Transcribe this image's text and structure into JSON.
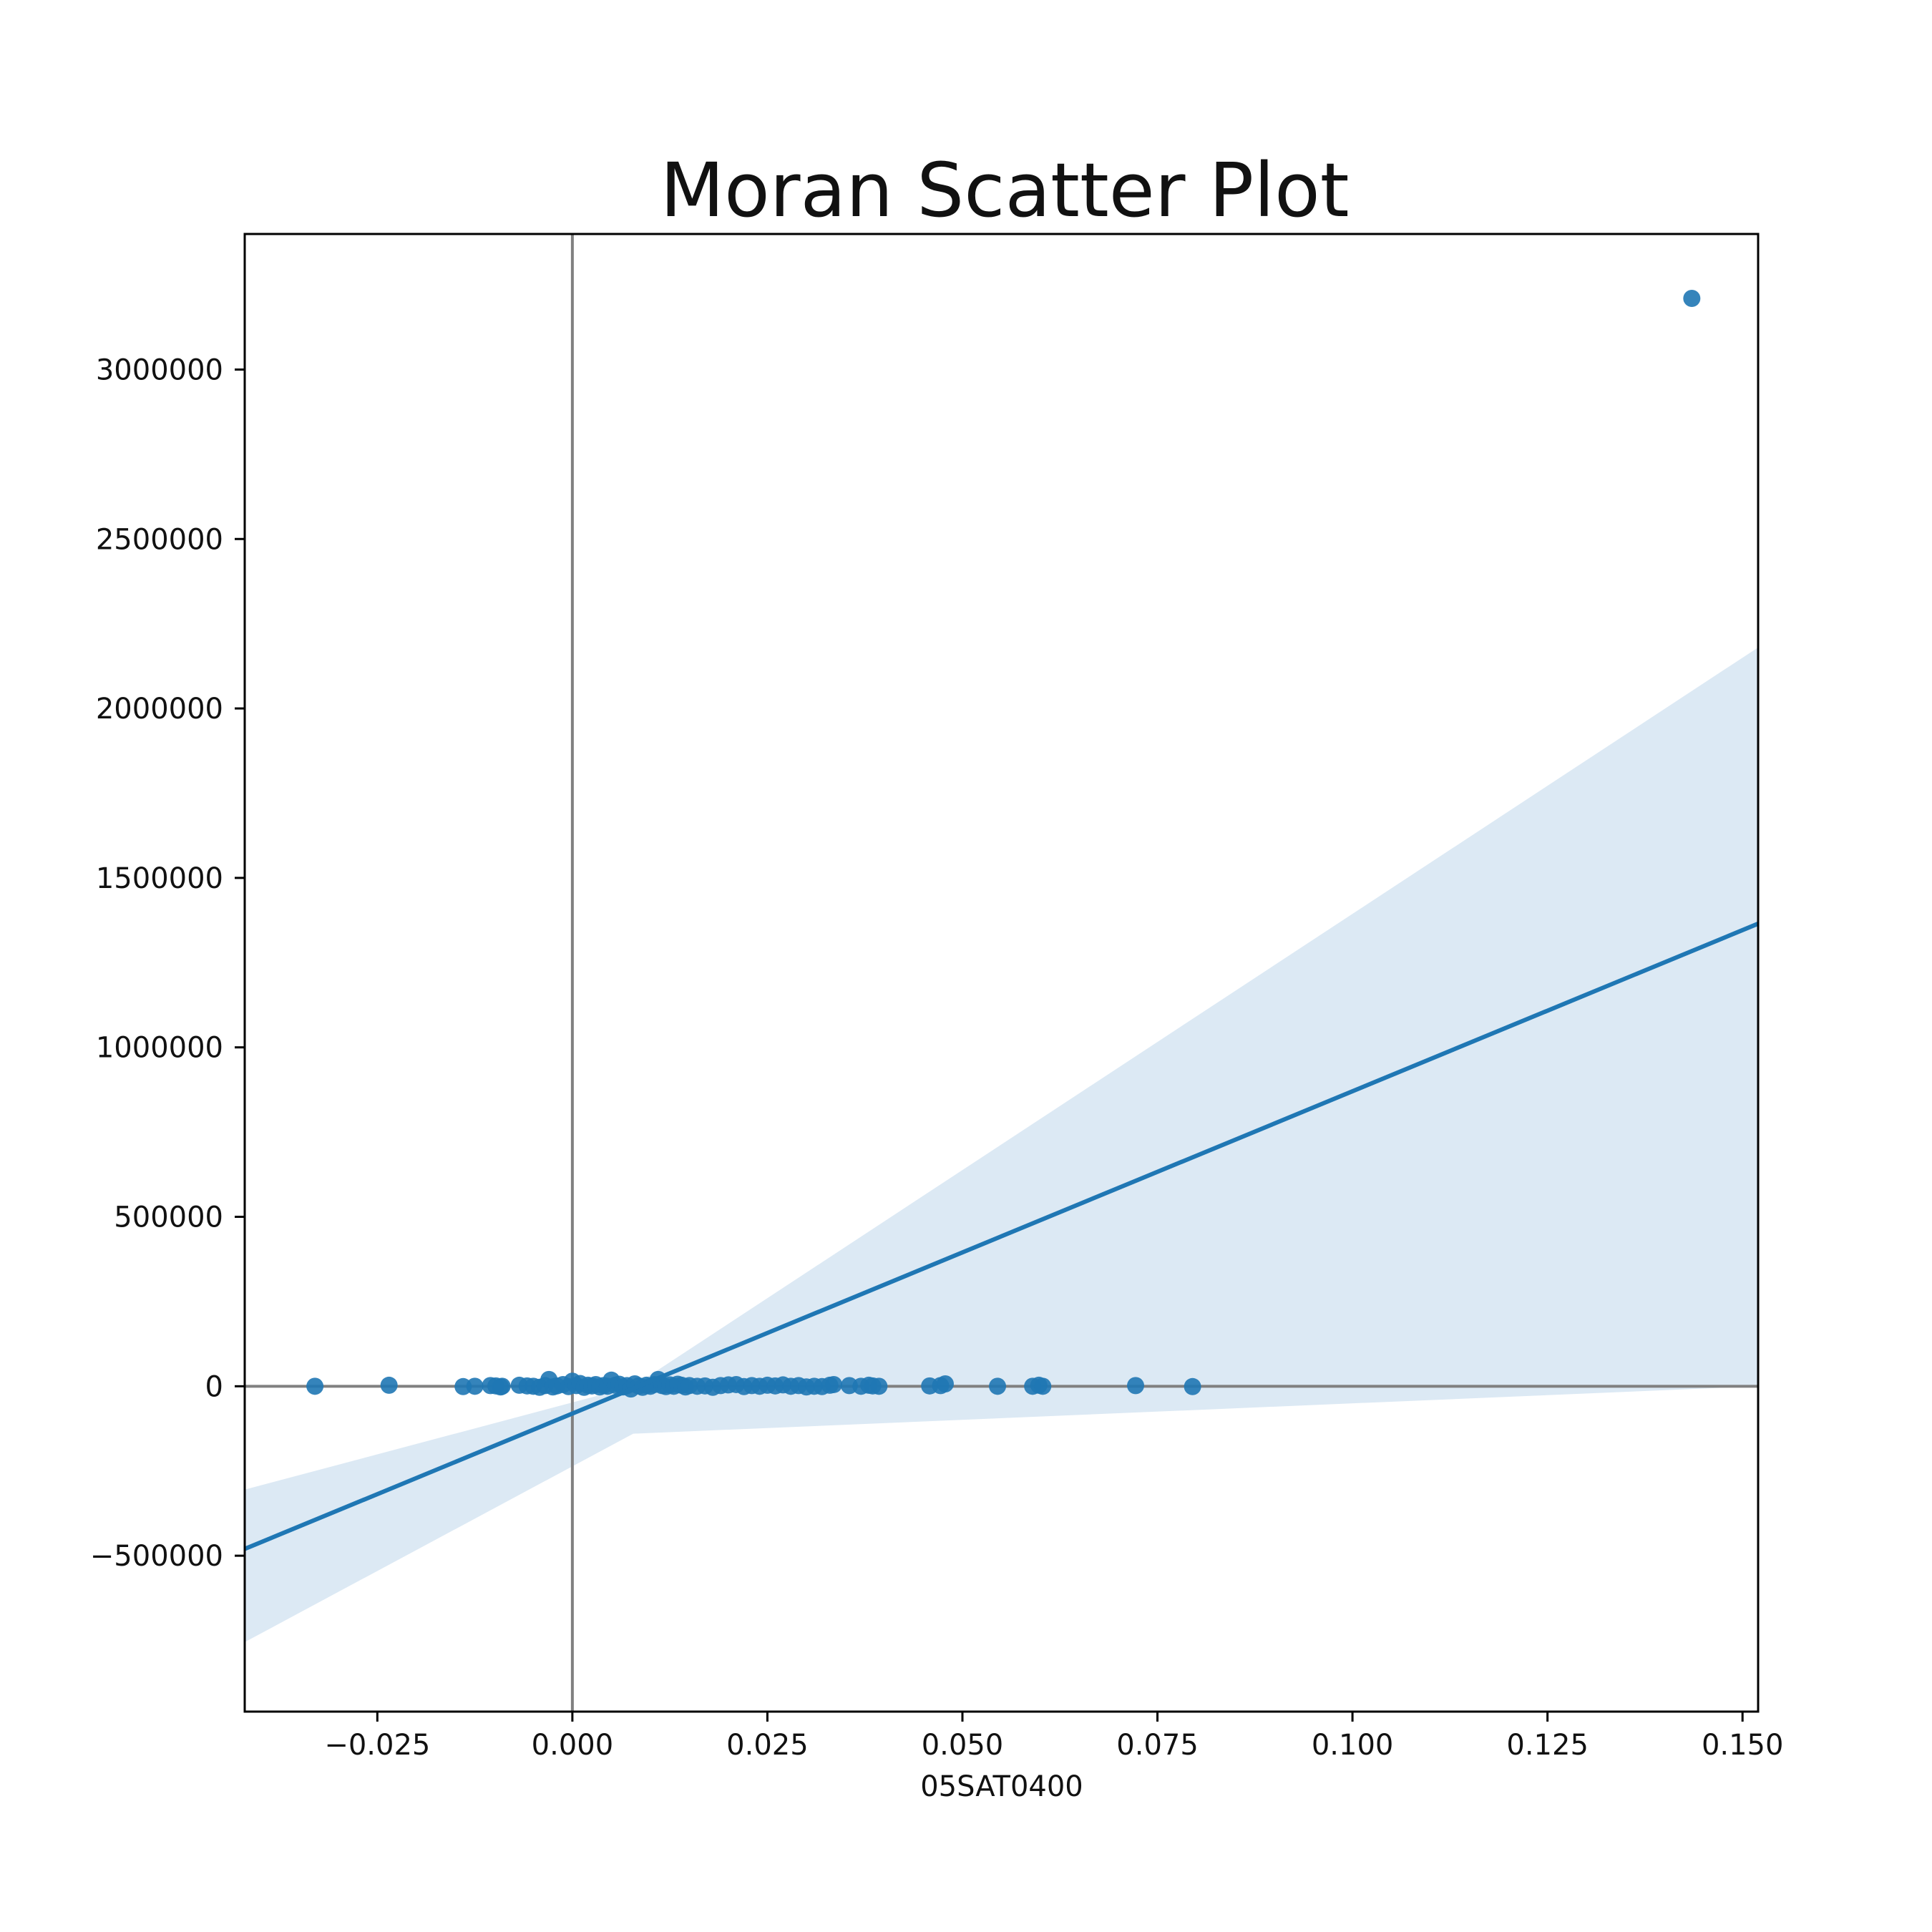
{
  "chart_data": {
    "type": "scatter",
    "title": "Moran Scatter Plot",
    "xlabel": "05SAT0400",
    "ylabel": "",
    "xlim": [
      -0.042,
      0.152
    ],
    "ylim": [
      -960000,
      3400000
    ],
    "x_ticks": [
      -0.025,
      0.0,
      0.025,
      0.05,
      0.075,
      0.1,
      0.125,
      0.15
    ],
    "x_tick_labels": [
      "−0.025",
      "0.000",
      "0.025",
      "0.050",
      "0.075",
      "0.100",
      "0.125",
      "0.150"
    ],
    "y_ticks": [
      -500000,
      0,
      500000,
      1000000,
      1500000,
      2000000,
      2500000,
      3000000
    ],
    "y_tick_labels": [
      "−500000",
      "0",
      "500000",
      "1000000",
      "1500000",
      "2000000",
      "2500000",
      "3000000"
    ],
    "reference_lines": {
      "x": 0,
      "y": 0
    },
    "regression_line": {
      "x": [
        -0.042,
        0.152
      ],
      "y": [
        -480000,
        1365000
      ]
    },
    "confidence_band": {
      "x": [
        -0.042,
        0.0078,
        0.152
      ],
      "upper": [
        -305000,
        0,
        2180000
      ],
      "lower": [
        -755000,
        -140000,
        0
      ]
    },
    "grid": false,
    "legend": "none",
    "colors": {
      "points": "#1f77b4",
      "band": "#dce9f4",
      "reference": "#808080"
    },
    "series": [
      {
        "name": "05SAT0400",
        "x": [
          -0.033,
          -0.0235,
          -0.014,
          -0.0125,
          -0.0105,
          -0.0098,
          -0.0092,
          -0.009,
          -0.0068,
          -0.0058,
          -0.005,
          -0.0042,
          -0.0035,
          -0.003,
          -0.0025,
          -0.002,
          -0.0012,
          -0.0005,
          0.0,
          0.0005,
          0.001,
          0.0015,
          0.002,
          0.0025,
          0.003,
          0.0035,
          0.004,
          0.0045,
          0.005,
          0.0055,
          0.006,
          0.0065,
          0.007,
          0.0075,
          0.008,
          0.0085,
          0.009,
          0.0095,
          0.01,
          0.0105,
          0.011,
          0.0115,
          0.012,
          0.0125,
          0.013,
          0.0135,
          0.014,
          0.0145,
          0.015,
          0.016,
          0.017,
          0.018,
          0.019,
          0.02,
          0.021,
          0.022,
          0.023,
          0.024,
          0.025,
          0.026,
          0.027,
          0.028,
          0.029,
          0.03,
          0.031,
          0.032,
          0.033,
          0.0335,
          0.0355,
          0.037,
          0.038,
          0.0385,
          0.0393,
          0.0458,
          0.0472,
          0.0478,
          0.0545,
          0.059,
          0.0598,
          0.0603,
          0.0722,
          0.0795,
          0.1435
        ],
        "y": [
          0,
          3000,
          -1000,
          0,
          2000,
          1000,
          -2000,
          0,
          3000,
          1000,
          0,
          -3000,
          2000,
          20000,
          -2000,
          1000,
          5000,
          -1000,
          15000,
          2000,
          8000,
          -3000,
          3000,
          1000,
          5000,
          -2000,
          2000,
          0,
          18000,
          3000,
          6000,
          -2000,
          2000,
          -8000,
          7000,
          1000,
          -3000,
          3000,
          0,
          5000,
          20000,
          2000,
          -1000,
          4000,
          0,
          6000,
          3000,
          -2000,
          2000,
          0,
          1000,
          -3000,
          2000,
          4000,
          5000,
          -1000,
          2000,
          0,
          3000,
          1000,
          4000,
          0,
          2000,
          -2000,
          0,
          -1000,
          3000,
          5000,
          2000,
          0,
          3000,
          1000,
          0,
          1000,
          2000,
          7000,
          0,
          0,
          3000,
          0,
          2000,
          -1000,
          3210000
        ]
      }
    ]
  }
}
